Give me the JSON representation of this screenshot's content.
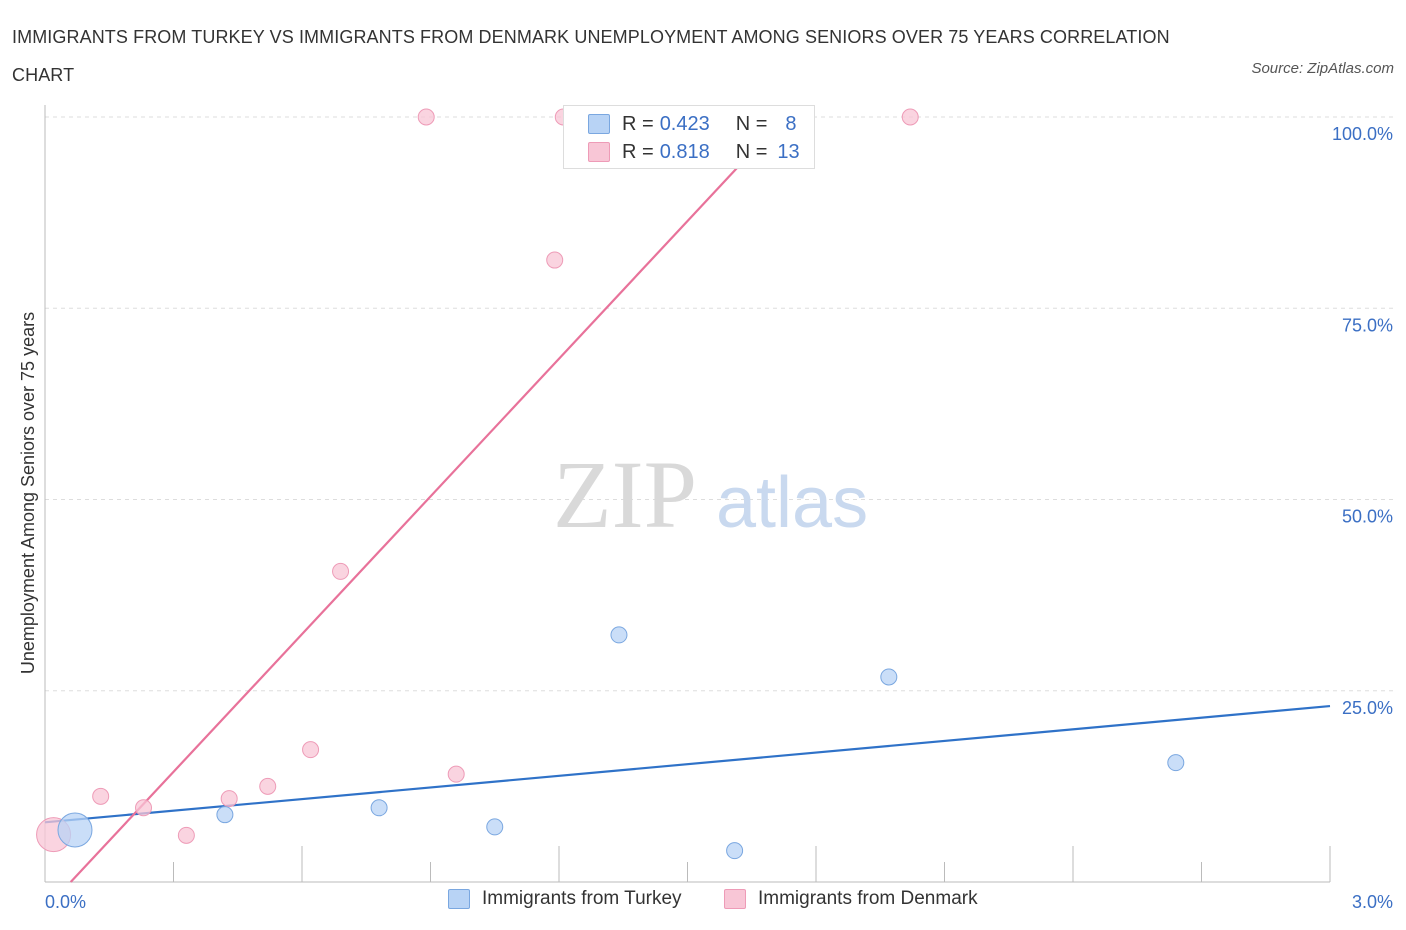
{
  "title": "IMMIGRANTS FROM TURKEY VS IMMIGRANTS FROM DENMARK UNEMPLOYMENT AMONG SENIORS OVER 75 YEARS CORRELATION CHART",
  "source": "Source: ZipAtlas.com",
  "watermark": {
    "zip": "ZIP",
    "atlas": "atlas"
  },
  "legend": {
    "rows": [
      {
        "r_label": "R =",
        "r_value": "0.423",
        "n_label": "N =",
        "n_value": "8"
      },
      {
        "r_label": "R =",
        "r_value": "0.818",
        "n_label": "N =",
        "n_value": "13"
      }
    ]
  },
  "colors": {
    "turkey_fill": "#b8d3f5",
    "turkey_stroke": "#7aa7e0",
    "turkey_line": "#2f72c8",
    "denmark_fill": "#f8c6d6",
    "denmark_stroke": "#ee9bb7",
    "denmark_line": "#e8729a",
    "axis_text": "#3b6fc4",
    "grid": "#dddddd"
  },
  "chart_data": {
    "type": "scatter",
    "title": "IMMIGRANTS FROM TURKEY VS IMMIGRANTS FROM DENMARK UNEMPLOYMENT AMONG SENIORS OVER 75 YEARS CORRELATION CHART",
    "xlabel": "",
    "ylabel": "Unemployment Among Seniors over 75 years",
    "xlim": [
      0,
      3.0
    ],
    "ylim": [
      0,
      100
    ],
    "x_tick_labels": [
      "0.0%",
      "3.0%"
    ],
    "y_ticks": [
      25,
      50,
      75,
      100
    ],
    "y_tick_labels": [
      "25.0%",
      "50.0%",
      "75.0%",
      "100.0%"
    ],
    "grid": true,
    "legend_position": "bottom",
    "series": [
      {
        "name": "Immigrants from Turkey",
        "points": [
          {
            "x": 0.07,
            "y": 6.8,
            "large": true
          },
          {
            "x": 0.42,
            "y": 8.8
          },
          {
            "x": 0.78,
            "y": 9.7
          },
          {
            "x": 1.05,
            "y": 7.2
          },
          {
            "x": 1.34,
            "y": 32.3
          },
          {
            "x": 1.61,
            "y": 4.1
          },
          {
            "x": 1.97,
            "y": 26.8
          },
          {
            "x": 2.64,
            "y": 15.6
          }
        ],
        "trend": {
          "x0": 0,
          "y0": 7.8,
          "x1": 3.0,
          "y1": 23.0
        }
      },
      {
        "name": "Immigrants from Denmark",
        "points": [
          {
            "x": 0.02,
            "y": 6.2,
            "large": true
          },
          {
            "x": 0.13,
            "y": 11.2
          },
          {
            "x": 0.23,
            "y": 9.7
          },
          {
            "x": 0.33,
            "y": 6.1
          },
          {
            "x": 0.43,
            "y": 10.9
          },
          {
            "x": 0.52,
            "y": 12.5
          },
          {
            "x": 0.62,
            "y": 17.3
          },
          {
            "x": 0.69,
            "y": 40.6
          },
          {
            "x": 0.89,
            "y": 100.0
          },
          {
            "x": 0.96,
            "y": 14.1
          },
          {
            "x": 1.19,
            "y": 81.3
          },
          {
            "x": 1.21,
            "y": 100.0
          },
          {
            "x": 2.02,
            "y": 100.0
          }
        ],
        "trend": {
          "x0": 0.06,
          "y0": 0.0,
          "x1": 1.71,
          "y1": 99.0
        }
      }
    ]
  }
}
